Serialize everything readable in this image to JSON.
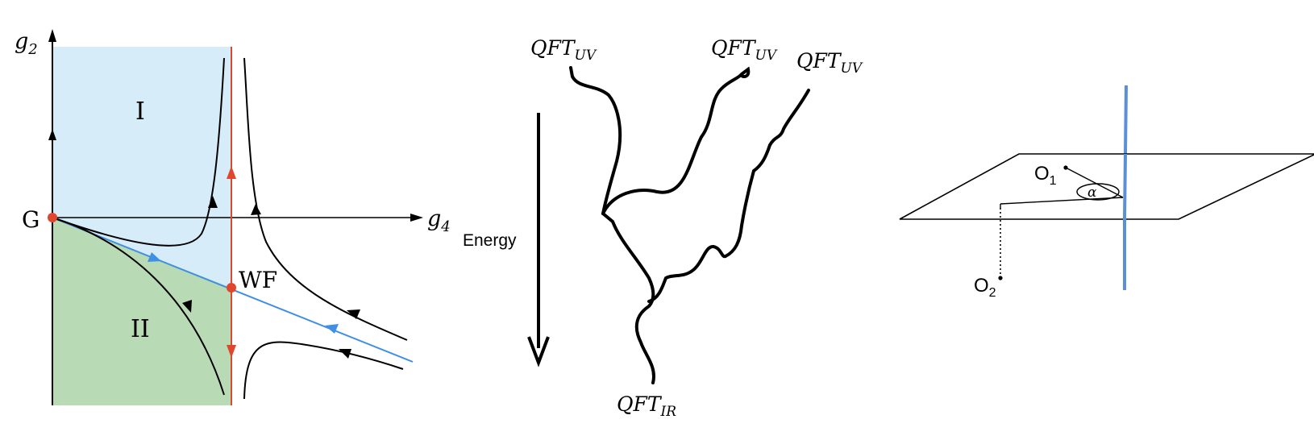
{
  "panel_rg_flow": {
    "axis_y_label": "g",
    "axis_y_sub": "2",
    "axis_x_label": "g",
    "axis_x_sub": "4",
    "region_one": "I",
    "region_two": "II",
    "gaussian_point": "G",
    "wf_point": "WF",
    "colors": {
      "region_one_fill": "#d6ecf9",
      "region_two_fill": "#b8dab4",
      "red_line": "#e0462e",
      "blue_line": "#3f8fe6",
      "point": "#e0462e"
    }
  },
  "panel_landscape": {
    "uv_top_left": {
      "main": "QFT",
      "sub": "UV"
    },
    "uv_top_mid": {
      "main": "QFT",
      "sub": "UV"
    },
    "uv_top_right": {
      "main": "QFT",
      "sub": "UV"
    },
    "ir_bottom": {
      "main": "QFT",
      "sub": "IR"
    },
    "energy_label": "Energy"
  },
  "panel_plane": {
    "point_one": {
      "main": "O",
      "sub": "1"
    },
    "point_two": {
      "main": "O",
      "sub": "2"
    },
    "angle_label": "α",
    "colors": {
      "vertical_line": "#5b8fd6"
    }
  }
}
